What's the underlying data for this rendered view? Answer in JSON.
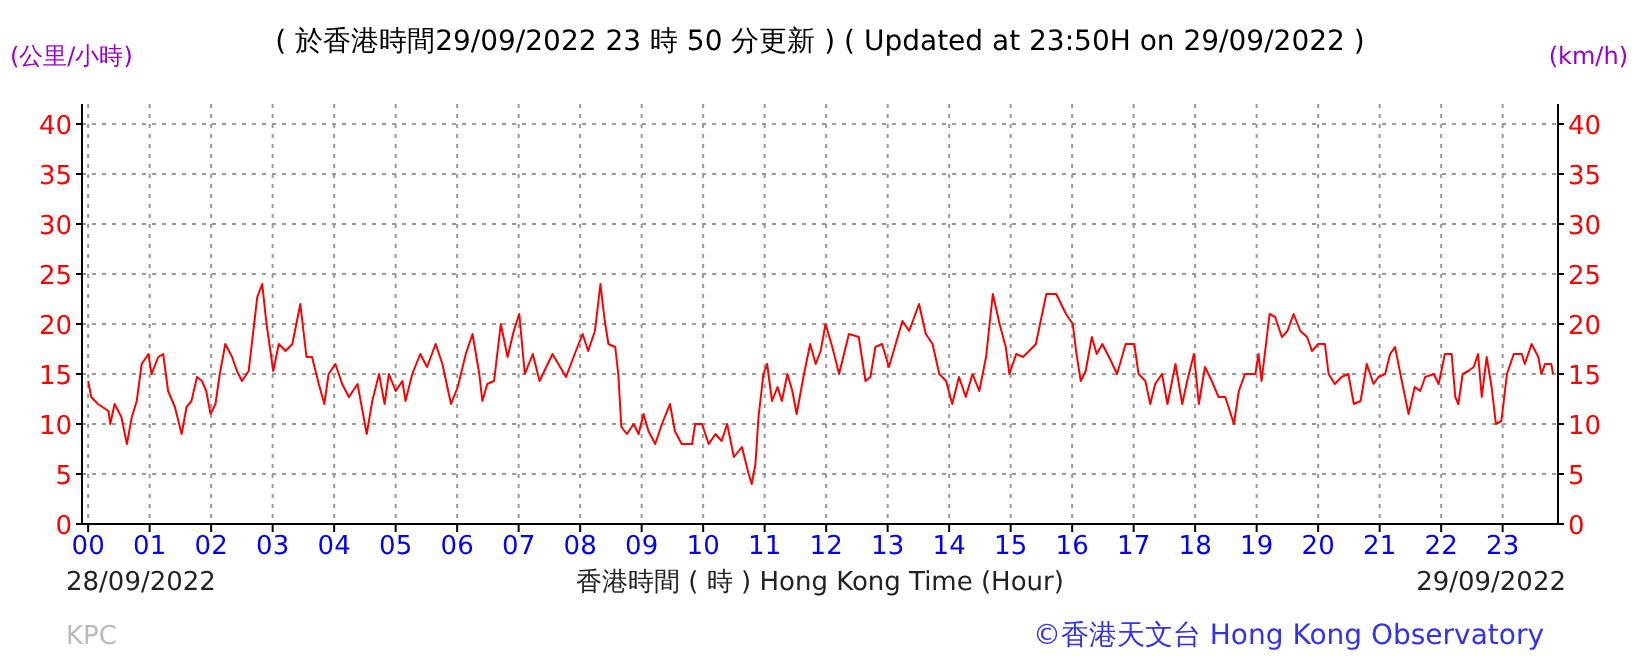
{
  "chart_data": {
    "type": "line",
    "title": "( 於香港時間29/09/2022 23 時 50 分更新 ) ( Updated at 23:50H on 29/09/2022 )",
    "xlabel": "香港時間 ( 時 )  Hong Kong Time (Hour)",
    "ylabel": "(公里/小時)",
    "y2label": "(km/h)",
    "annotations": [
      "28/09/2022",
      "29/09/2022",
      "KPC",
      "©香港天文台 Hong Kong Observatory"
    ],
    "xlim": [
      -0.1,
      23.9
    ],
    "ylim": [
      0,
      42
    ],
    "y2lim": [
      0,
      42
    ],
    "xticks": [
      {
        "value": 0,
        "label": "00"
      },
      {
        "value": 1,
        "label": "01"
      },
      {
        "value": 2,
        "label": "02"
      },
      {
        "value": 3,
        "label": "03"
      },
      {
        "value": 4,
        "label": "04"
      },
      {
        "value": 5,
        "label": "05"
      },
      {
        "value": 6,
        "label": "06"
      },
      {
        "value": 7,
        "label": "07"
      },
      {
        "value": 8,
        "label": "08"
      },
      {
        "value": 9,
        "label": "09"
      },
      {
        "value": 10,
        "label": "10"
      },
      {
        "value": 11,
        "label": "11"
      },
      {
        "value": 12,
        "label": "12"
      },
      {
        "value": 13,
        "label": "13"
      },
      {
        "value": 14,
        "label": "14"
      },
      {
        "value": 15,
        "label": "15"
      },
      {
        "value": 16,
        "label": "16"
      },
      {
        "value": 17,
        "label": "17"
      },
      {
        "value": 18,
        "label": "18"
      },
      {
        "value": 19,
        "label": "19"
      },
      {
        "value": 20,
        "label": "20"
      },
      {
        "value": 21,
        "label": "21"
      },
      {
        "value": 22,
        "label": "22"
      },
      {
        "value": 23,
        "label": "23"
      }
    ],
    "yticks": [
      0,
      5,
      10,
      15,
      20,
      25,
      30,
      35,
      40
    ],
    "y2ticks": [
      0,
      5,
      10,
      15,
      20,
      25,
      30,
      35,
      40
    ],
    "grid": true,
    "marker": "none",
    "line_style": "solid",
    "series": [
      {
        "color": "#ff0000",
        "x": [
          0,
          0.05,
          0.16,
          0.33,
          0.36,
          0.43,
          0.54,
          0.63,
          0.71,
          0.79,
          0.87,
          0.98,
          1.03,
          1.14,
          1.22,
          1.3,
          1.41,
          1.52,
          1.6,
          1.68,
          1.77,
          1.85,
          1.92,
          1.99,
          2.07,
          2.14,
          2.23,
          2.34,
          2.42,
          2.5,
          2.61,
          2.75,
          2.83,
          2.9,
          3.01,
          3.1,
          3.21,
          3.32,
          3.45,
          3.55,
          3.64,
          3.75,
          3.84,
          3.91,
          4.02,
          4.13,
          4.24,
          4.38,
          4.53,
          4.62,
          4.73,
          4.82,
          4.89,
          5,
          5.11,
          5.16,
          5.27,
          5.4,
          5.51,
          5.65,
          5.76,
          5.9,
          6.01,
          6.14,
          6.25,
          6.36,
          6.41,
          6.49,
          6.6,
          6.71,
          6.82,
          6.92,
          7.01,
          7.1,
          7.23,
          7.34,
          7.55,
          7.77,
          7.93,
          8.04,
          8.13,
          8.24,
          8.33,
          8.4,
          8.46,
          8.57,
          8.62,
          8.67,
          8.76,
          8.87,
          8.95,
          9.03,
          9.11,
          9.22,
          9.33,
          9.46,
          9.54,
          9.65,
          9.82,
          9.87,
          9.98,
          10.09,
          10.2,
          10.3,
          10.39,
          10.5,
          10.63,
          10.74,
          10.79,
          10.85,
          10.9,
          10.98,
          11.04,
          11.12,
          11.21,
          11.28,
          11.37,
          11.45,
          11.52,
          11.63,
          11.74,
          11.83,
          11.91,
          11.99,
          12.1,
          12.21,
          12.37,
          12.53,
          12.64,
          12.72,
          12.8,
          12.91,
          13.02,
          13.13,
          13.24,
          13.35,
          13.51,
          13.62,
          13.73,
          13.84,
          13.95,
          14.05,
          14.16,
          14.27,
          14.38,
          14.49,
          14.6,
          14.71,
          14.82,
          14.92,
          14.98,
          15.09,
          15.2,
          15.3,
          15.41,
          15.58,
          15.74,
          15.9,
          16.01,
          16.07,
          16.14,
          16.22,
          16.32,
          16.4,
          16.49,
          16.6,
          16.73,
          16.87,
          17.01,
          17.08,
          17.19,
          17.27,
          17.35,
          17.46,
          17.55,
          17.68,
          17.79,
          17.87,
          17.98,
          18.06,
          18.16,
          18.27,
          18.38,
          18.49,
          18.63,
          18.71,
          18.81,
          18.98,
          19.03,
          19.08,
          19.21,
          19.3,
          19.41,
          19.5,
          19.6,
          19.71,
          19.82,
          19.9,
          20,
          20.11,
          20.17,
          20.27,
          20.38,
          20.49,
          20.58,
          20.69,
          20.79,
          20.9,
          20.98,
          21.09,
          21.17,
          21.25,
          21.36,
          21.47,
          21.57,
          21.66,
          21.74,
          21.88,
          21.96,
          22.06,
          22.17,
          22.23,
          22.28,
          22.35,
          22.44,
          22.53,
          22.6,
          22.66,
          22.74,
          22.82,
          22.89,
          22.98,
          23.07,
          23.18,
          23.31,
          23.36,
          23.47,
          23.58,
          23.63,
          23.69,
          23.79,
          23.82
        ],
        "values": [
          14.3,
          12.7,
          12,
          11.3,
          10,
          12,
          10.7,
          8,
          10.7,
          12.3,
          16,
          17,
          15,
          16.7,
          17,
          13.3,
          11.7,
          9,
          11.7,
          12.3,
          14.7,
          14.3,
          13.3,
          11,
          12,
          15,
          18,
          16.7,
          15.3,
          14.3,
          15.3,
          22.7,
          24,
          20,
          15.3,
          18,
          17.3,
          18,
          22,
          16.7,
          16.7,
          14,
          12,
          15,
          16,
          14,
          12.7,
          14,
          9,
          12.3,
          15,
          12,
          15,
          13.3,
          14.3,
          12.3,
          15,
          17,
          15.7,
          18,
          16,
          12,
          13.7,
          17,
          19,
          15,
          12.3,
          14,
          14.3,
          20,
          16.7,
          19.3,
          21,
          15,
          17,
          14.3,
          17,
          14.7,
          17.3,
          19,
          17.3,
          19.3,
          24,
          20.3,
          18,
          17.7,
          15,
          9.7,
          9,
          10,
          9,
          11,
          9.3,
          8,
          10,
          12,
          9.3,
          8,
          8,
          10,
          10,
          8,
          9,
          8.3,
          10,
          6.7,
          7.7,
          5,
          4,
          6,
          10.7,
          15,
          16,
          12.3,
          13.7,
          12.3,
          15,
          13.3,
          11,
          14.7,
          18,
          16,
          17.3,
          20,
          17.7,
          15,
          19,
          18.7,
          14.3,
          14.7,
          17.7,
          18,
          15.7,
          18,
          20.3,
          19.3,
          22,
          19,
          18,
          15,
          14.3,
          12,
          14.7,
          12.7,
          15,
          13.3,
          16.7,
          23,
          20,
          17.7,
          15,
          17,
          16.7,
          17.3,
          18,
          23,
          23,
          21,
          20,
          17,
          14.3,
          15.3,
          18.7,
          17,
          18,
          16.7,
          15,
          18,
          18,
          15,
          14.3,
          12,
          14,
          15,
          12,
          16,
          12,
          14.3,
          17,
          12,
          15.7,
          14.3,
          12.7,
          12.7,
          10,
          13.3,
          15,
          15,
          17,
          14.3,
          21,
          20.7,
          18.7,
          19.3,
          21,
          19.3,
          18.7,
          17.3,
          18,
          18,
          15,
          14,
          14.7,
          15,
          12,
          12.3,
          16,
          14,
          14.7,
          15,
          17,
          17.7,
          14.3,
          11,
          13.7,
          13.3,
          14.7,
          15,
          14,
          17,
          17,
          12.7,
          12,
          15,
          15.3,
          15.7,
          17,
          12.7,
          16.7,
          13.7,
          10,
          10.3,
          15,
          17,
          17,
          16,
          18,
          16.7,
          15,
          16,
          16,
          15
        ]
      }
    ]
  }
}
